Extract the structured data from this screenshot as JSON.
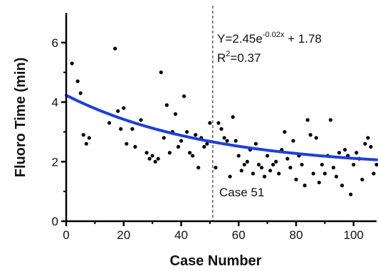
{
  "chart_data": {
    "type": "scatter",
    "title": "",
    "xlabel": "Case Number",
    "ylabel": "Fluoro Time (min)",
    "xlim": [
      0,
      108
    ],
    "ylim": [
      0,
      7
    ],
    "x_ticks": [
      0,
      20,
      40,
      60,
      80,
      100
    ],
    "y_ticks": [
      0,
      2,
      4,
      6
    ],
    "grid": false,
    "legend": "none",
    "point_color": "#000000",
    "fit_color": "#1f3fd8",
    "series": [
      {
        "type": "scatter",
        "x": [
          2,
          4,
          5,
          6,
          7,
          8,
          9,
          15,
          17,
          18,
          19,
          20,
          21,
          23,
          24,
          26,
          28,
          29,
          30,
          31,
          32,
          33,
          34,
          35,
          36,
          37,
          38,
          39,
          40,
          41,
          42,
          43,
          44,
          45,
          46,
          47,
          48,
          49,
          50,
          52,
          53,
          54,
          55,
          56,
          57,
          58,
          59,
          60,
          61,
          62,
          63,
          64,
          65,
          66,
          67,
          68,
          69,
          70,
          71,
          72,
          73,
          74,
          75,
          76,
          77,
          78,
          79,
          80,
          81,
          82,
          83,
          84,
          85,
          86,
          87,
          88,
          89,
          90,
          91,
          92,
          93,
          94,
          95,
          96,
          97,
          98,
          99,
          100,
          101,
          102,
          103,
          104,
          105,
          106,
          107,
          108
        ],
        "y": [
          5.3,
          4.7,
          4.3,
          2.9,
          2.6,
          2.8,
          null,
          3.3,
          5.8,
          3.7,
          3.1,
          3.8,
          2.6,
          3.1,
          2.5,
          3.4,
          2.3,
          2.1,
          2.2,
          2.0,
          2.1,
          5.0,
          2.8,
          3.9,
          2.3,
          3.0,
          3.6,
          2.5,
          2.7,
          4.2,
          3.0,
          2.3,
          2.2,
          2.9,
          1.8,
          2.8,
          2.5,
          2.6,
          3.3,
          1.8,
          3.3,
          3.1,
          2.8,
          2.7,
          1.5,
          3.5,
          2.7,
          2.2,
          1.7,
          1.9,
          2.0,
          2.4,
          1.6,
          2.6,
          1.9,
          1.8,
          1.5,
          2.2,
          1.7,
          1.9,
          2.0,
          1.6,
          2.4,
          3.0,
          2.1,
          1.8,
          2.7,
          1.4,
          2.2,
          1.9,
          1.2,
          3.4,
          2.9,
          1.6,
          2.8,
          1.3,
          1.9,
          1.6,
          2.2,
          3.4,
          1.8,
          1.5,
          2.3,
          1.2,
          2.4,
          2.2,
          0.9,
          1.9,
          2.3,
          2.1,
          1.4,
          2.6,
          2.8,
          2.5,
          1.6,
          1.9
        ]
      },
      {
        "type": "line",
        "equation": "Y=2.45e^(-0.02x) + 1.78",
        "a": 2.45,
        "k": -0.02,
        "c": 1.78,
        "x_range": [
          0,
          108
        ]
      }
    ],
    "annotations": {
      "equation_main": "Y=2.45e",
      "equation_exp": "-0.02x",
      "equation_tail": " + 1.78",
      "r2_prefix": "R",
      "r2_sup": "2",
      "r2_suffix": "=0.37",
      "vline_label": "Case 51",
      "vline_x": 51
    }
  }
}
